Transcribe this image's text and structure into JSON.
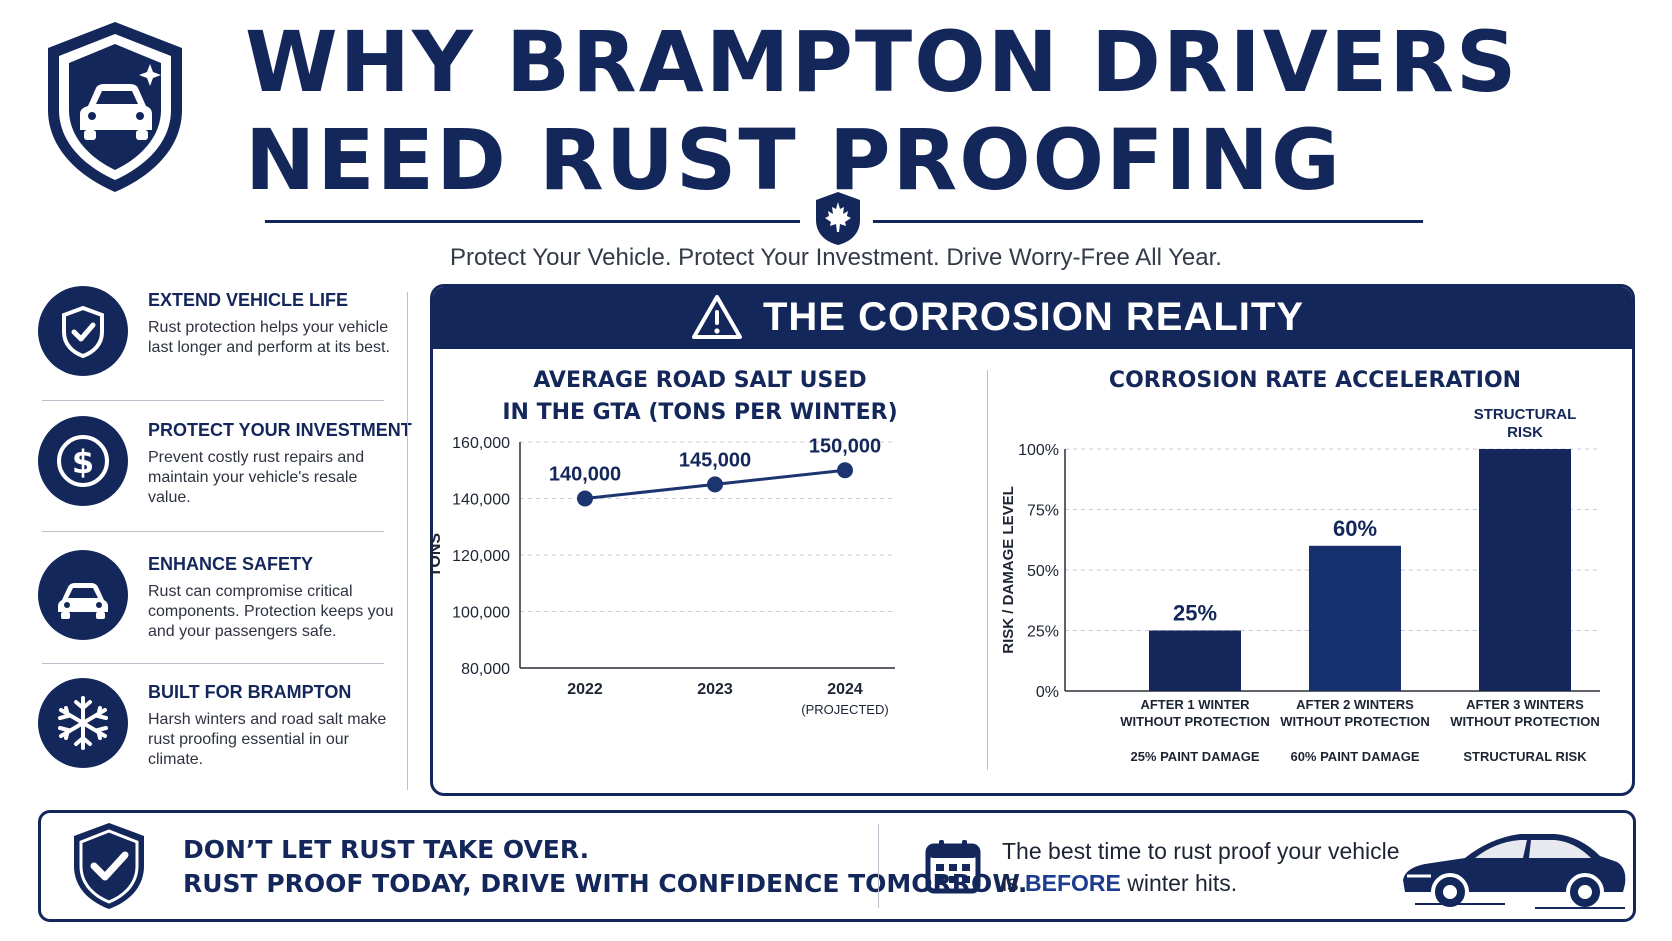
{
  "header": {
    "title_line1": "WHY BRAMPTON DRIVERS",
    "title_line2": "NEED RUST PROOFING",
    "subtitle": "Protect Your Vehicle. Protect Your Investment. Drive Worry-Free All Year."
  },
  "features": [
    {
      "icon": "shield-check-icon",
      "title": "EXTEND VEHICLE LIFE",
      "text": "Rust protection helps your vehicle last longer and perform at its best."
    },
    {
      "icon": "dollar-icon",
      "title": "PROTECT YOUR INVESTMENT",
      "text": "Prevent costly rust repairs and maintain your vehicle's resale value."
    },
    {
      "icon": "car-icon",
      "title": "ENHANCE SAFETY",
      "text": "Rust can compromise critical components. Protection keeps you and your passengers safe."
    },
    {
      "icon": "snowflake-icon",
      "title": "BUILT FOR BRAMPTON",
      "text": "Harsh winters and road salt make rust proofing essential in our climate."
    }
  ],
  "panel": {
    "title": "THE CORROSION REALITY"
  },
  "chart_data": [
    {
      "type": "line",
      "title": "AVERAGE ROAD SALT USED IN THE GTA (TONS PER WINTER)",
      "title_lines": [
        "AVERAGE ROAD SALT USED",
        "IN THE GTA (TONS PER WINTER)"
      ],
      "ylabel": "TONS",
      "xlabel": "",
      "categories": [
        "2022",
        "2023",
        "2024"
      ],
      "category_sublabels": [
        "",
        "",
        "(PROJECTED)"
      ],
      "values": [
        140000,
        145000,
        150000
      ],
      "data_labels": [
        "140,000",
        "145,000",
        "150,000"
      ],
      "ylim": [
        80000,
        160000
      ],
      "yticks": [
        80000,
        100000,
        120000,
        140000,
        160000
      ],
      "ytick_labels": [
        "80,000",
        "100,000",
        "120,000",
        "140,000",
        "160,000"
      ],
      "grid": true,
      "color": "#1c3470"
    },
    {
      "type": "bar",
      "title": "CORROSION RATE ACCELERATION",
      "ylabel": "RISK / DAMAGE LEVEL",
      "xlabel": "",
      "categories": [
        [
          "AFTER 1 WINTER",
          "WITHOUT PROTECTION"
        ],
        [
          "AFTER 2 WINTERS",
          "WITHOUT PROTECTION"
        ],
        [
          "AFTER 3 WINTERS",
          "WITHOUT PROTECTION"
        ]
      ],
      "sublabels": [
        "25% PAINT DAMAGE",
        "60% PAINT DAMAGE",
        "STRUCTURAL RISK"
      ],
      "values": [
        25,
        60,
        100
      ],
      "data_labels": [
        [
          "25%"
        ],
        [
          "60%"
        ],
        [
          "STRUCTURAL",
          "RISK"
        ]
      ],
      "ylim": [
        0,
        100
      ],
      "yticks": [
        0,
        25,
        50,
        75,
        100
      ],
      "ytick_labels": [
        "0%",
        "25%",
        "50%",
        "75%",
        "100%"
      ],
      "grid": true,
      "colors": [
        "#15275a",
        "#15306c",
        "#15275a"
      ]
    }
  ],
  "banner": {
    "line1": "DON’T LET RUST TAKE OVER.",
    "line2": "RUST PROOF TODAY, DRIVE WITH CONFIDENCE TOMORROW.",
    "text1": "The best time to rust proof your vehicle",
    "text2_pre": "is ",
    "text2_em": "BEFORE",
    "text2_post": " winter hits."
  },
  "colors": {
    "navy": "#14275a",
    "accent_blue": "#1c3d8f",
    "text_gray": "#2e3340",
    "divider": "#bcc2cc"
  }
}
